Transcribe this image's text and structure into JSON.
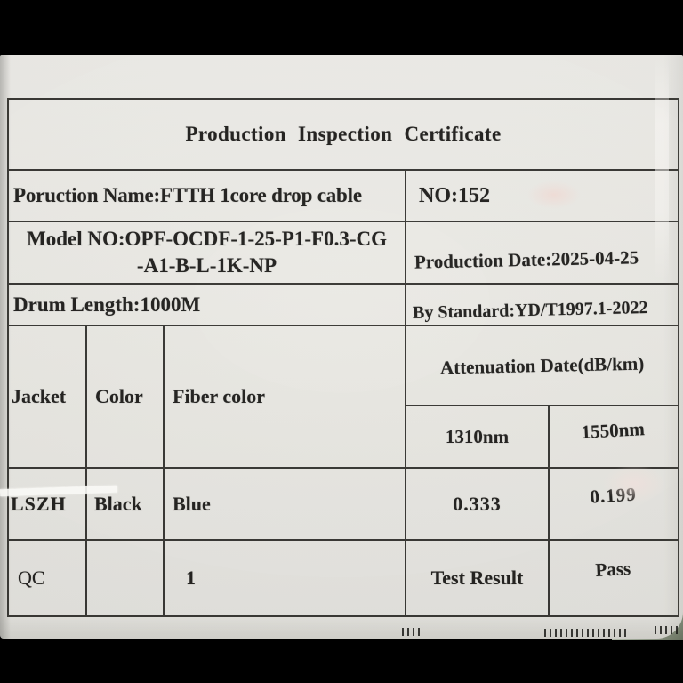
{
  "colors": {
    "paper": "#e9e8e3",
    "ink": "#1b1a18",
    "grid_line": "#32312d",
    "background_bar": "#000000",
    "drum_edge": "#9aa392"
  },
  "certificate": {
    "title": "Production Inspection Certificate",
    "info": {
      "product_name": "Poruction Name:FTTH 1core drop cable",
      "serial_no": "NO:152",
      "model_line1": "Model NO:OPF-OCDF-1-25-P1-F0.3-CG",
      "model_line2": "-A1-B-L-1K-NP",
      "production_date": "Production Date:2025-04-25",
      "drum_length": "Drum Length:1000M",
      "standard": "By Standard:YD/T1997.1-2022"
    },
    "spec_table": {
      "headers": {
        "jacket": "Jacket",
        "color": "Color",
        "fiber_color": "Fiber color",
        "attenuation": "Attenuation Date(dB/km)",
        "wavelength_1310": "1310nm",
        "wavelength_1550": "1550nm"
      },
      "data_row": {
        "jacket": "LSZH",
        "color": "Black",
        "fiber_color": "Blue",
        "attenuation_1310": "0.333",
        "attenuation_1550": "0.199"
      },
      "qc_row": {
        "label": "QC",
        "color": "",
        "fiber_count": "1",
        "test_result_label": "Test Result",
        "test_result_value": "Pass"
      }
    }
  }
}
